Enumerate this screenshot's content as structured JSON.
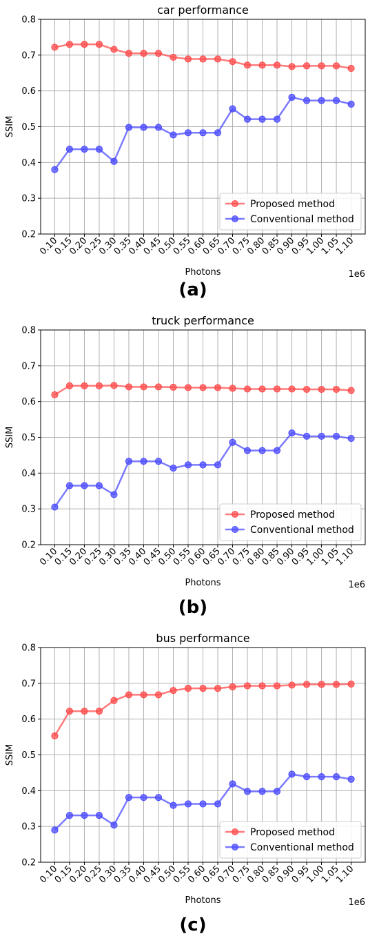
{
  "figure": {
    "x_label": "Photons",
    "y_label": "SSIM",
    "x_offset_text": "1e6",
    "legend": [
      "Proposed method",
      "Conventional method"
    ],
    "legend_position": "lower-right",
    "colors": {
      "proposed": "#ff4d4d",
      "conventional": "#4d4dff",
      "grid": "#b0b0b0"
    }
  },
  "chart_data": [
    {
      "type": "line",
      "panel_label": "(a)",
      "title": "car performance",
      "xlabel": "Photons",
      "ylabel": "SSIM",
      "x_scale_text": "1e6",
      "x": [
        "0.10",
        "0.15",
        "0.20",
        "0.25",
        "0.30",
        "0.35",
        "0.40",
        "0.45",
        "0.50",
        "0.55",
        "0.60",
        "0.65",
        "0.70",
        "0.75",
        "0.80",
        "0.85",
        "0.90",
        "0.95",
        "1.00",
        "1.05",
        "1.10"
      ],
      "ylim": [
        0.2,
        0.8
      ],
      "yticks": [
        "0.2",
        "0.3",
        "0.4",
        "0.5",
        "0.6",
        "0.7",
        "0.8"
      ],
      "grid": true,
      "legend_position": "lower-right",
      "series": [
        {
          "name": "Proposed method",
          "color": "#ff4d4d",
          "values": [
            0.722,
            0.73,
            0.73,
            0.73,
            0.716,
            0.705,
            0.705,
            0.705,
            0.694,
            0.689,
            0.689,
            0.689,
            0.682,
            0.672,
            0.672,
            0.672,
            0.668,
            0.67,
            0.67,
            0.67,
            0.663
          ]
        },
        {
          "name": "Conventional method",
          "color": "#4d4dff",
          "values": [
            0.38,
            0.437,
            0.437,
            0.437,
            0.403,
            0.498,
            0.498,
            0.498,
            0.477,
            0.483,
            0.483,
            0.483,
            0.55,
            0.521,
            0.521,
            0.521,
            0.582,
            0.573,
            0.573,
            0.573,
            0.563
          ]
        }
      ]
    },
    {
      "type": "line",
      "panel_label": "(b)",
      "title": "truck performance",
      "xlabel": "Photons",
      "ylabel": "SSIM",
      "x_scale_text": "1e6",
      "x": [
        "0.10",
        "0.15",
        "0.20",
        "0.25",
        "0.30",
        "0.35",
        "0.40",
        "0.45",
        "0.50",
        "0.55",
        "0.60",
        "0.65",
        "0.70",
        "0.75",
        "0.80",
        "0.85",
        "0.90",
        "0.95",
        "1.00",
        "1.05",
        "1.10"
      ],
      "ylim": [
        0.2,
        0.8
      ],
      "yticks": [
        "0.2",
        "0.3",
        "0.4",
        "0.5",
        "0.6",
        "0.7",
        "0.8"
      ],
      "grid": true,
      "legend_position": "lower-right",
      "series": [
        {
          "name": "Proposed method",
          "color": "#ff4d4d",
          "values": [
            0.619,
            0.644,
            0.644,
            0.644,
            0.645,
            0.641,
            0.641,
            0.641,
            0.64,
            0.639,
            0.639,
            0.639,
            0.637,
            0.635,
            0.635,
            0.635,
            0.635,
            0.634,
            0.634,
            0.634,
            0.631
          ]
        },
        {
          "name": "Conventional method",
          "color": "#4d4dff",
          "values": [
            0.305,
            0.365,
            0.365,
            0.365,
            0.34,
            0.433,
            0.433,
            0.433,
            0.414,
            0.423,
            0.423,
            0.423,
            0.486,
            0.463,
            0.463,
            0.463,
            0.512,
            0.503,
            0.503,
            0.503,
            0.497
          ]
        }
      ]
    },
    {
      "type": "line",
      "panel_label": "(c)",
      "title": "bus performance",
      "xlabel": "Photons",
      "ylabel": "SSIM",
      "x_scale_text": "1e6",
      "x": [
        "0.10",
        "0.15",
        "0.20",
        "0.25",
        "0.30",
        "0.35",
        "0.40",
        "0.45",
        "0.50",
        "0.55",
        "0.60",
        "0.65",
        "0.70",
        "0.75",
        "0.80",
        "0.85",
        "0.90",
        "0.95",
        "1.00",
        "1.05",
        "1.10"
      ],
      "ylim": [
        0.2,
        0.8
      ],
      "yticks": [
        "0.2",
        "0.3",
        "0.4",
        "0.5",
        "0.6",
        "0.7",
        "0.8"
      ],
      "grid": true,
      "legend_position": "lower-right",
      "series": [
        {
          "name": "Proposed method",
          "color": "#ff4d4d",
          "values": [
            0.553,
            0.622,
            0.622,
            0.622,
            0.652,
            0.668,
            0.668,
            0.668,
            0.68,
            0.686,
            0.686,
            0.686,
            0.69,
            0.693,
            0.693,
            0.693,
            0.695,
            0.697,
            0.697,
            0.697,
            0.698
          ]
        },
        {
          "name": "Conventional method",
          "color": "#4d4dff",
          "values": [
            0.29,
            0.331,
            0.331,
            0.331,
            0.304,
            0.381,
            0.381,
            0.381,
            0.359,
            0.363,
            0.363,
            0.363,
            0.419,
            0.398,
            0.398,
            0.398,
            0.446,
            0.439,
            0.439,
            0.439,
            0.432
          ]
        }
      ]
    }
  ]
}
